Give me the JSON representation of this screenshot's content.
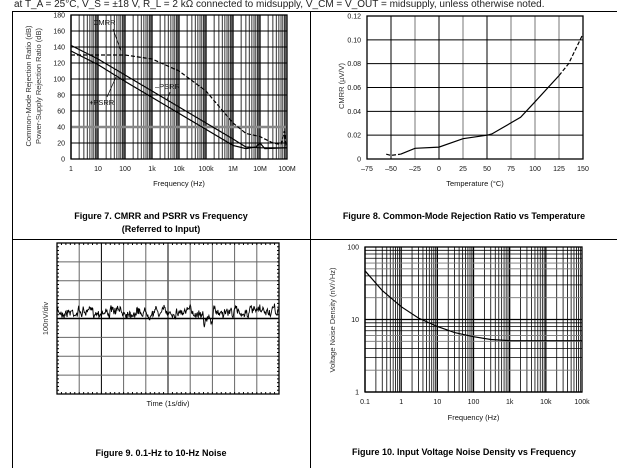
{
  "header_note": "at T_A = 25°C, V_S = ±18 V, R_L = 2 kΩ connected to midsupply, V_CM = V_OUT = midsupply, unless otherwise noted.",
  "captions": {
    "fig7_line1": "Figure 7. CMRR and PSRR vs Frequency",
    "fig7_line2": "(Referred to Input)",
    "fig8": "Figure 8. Common-Mode Rejection Ratio vs Temperature",
    "fig9": "Figure 9. 0.1-Hz to 10-Hz Noise",
    "fig10": "Figure 10. Input Voltage Noise Density vs Frequency"
  },
  "chart_data": [
    {
      "id": "fig7",
      "type": "line",
      "xscale": "log",
      "xlim": [
        1,
        100000000
      ],
      "ylim": [
        0,
        180
      ],
      "xticks": [
        "1",
        "10",
        "100",
        "1k",
        "10k",
        "100k",
        "1M",
        "10M",
        "100M"
      ],
      "yticks": [
        "0",
        "20",
        "40",
        "60",
        "80",
        "100",
        "120",
        "140",
        "160",
        "180"
      ],
      "xlabel": "Frequency (Hz)",
      "ylabel": "Common-Mode Rejection Ratio (dB)",
      "ylabel2": "Power-Supply Rejection Ratio (dB)",
      "series": [
        {
          "name": "CMRR",
          "dashed": true,
          "x": [
            1,
            10,
            100,
            1000,
            10000,
            100000,
            1000000,
            3000000,
            10000000,
            30000000,
            60000000,
            80000000,
            90000000,
            100000000
          ],
          "y": [
            130,
            130,
            130,
            125,
            110,
            85,
            45,
            32,
            28,
            20,
            18,
            35,
            18,
            20
          ]
        },
        {
          "name": "–PSRR",
          "dashed": false,
          "x": [
            1,
            10,
            100,
            1000,
            10000,
            100000,
            1000000,
            3000000,
            10000000,
            100000000
          ],
          "y": [
            142,
            125,
            105,
            85,
            65,
            45,
            25,
            15,
            14,
            14
          ]
        },
        {
          "name": "+PSRR",
          "dashed": false,
          "x": [
            1,
            10,
            100,
            1000,
            10000,
            100000,
            1000000,
            3000000,
            7000000,
            10000000,
            15000000,
            100000000
          ],
          "y": [
            135,
            118,
            97,
            77,
            57,
            37,
            17,
            13,
            15,
            20,
            13,
            14
          ]
        }
      ]
    },
    {
      "id": "fig8",
      "type": "line",
      "xscale": "linear",
      "xlim": [
        -75,
        150
      ],
      "ylim": [
        0,
        0.12
      ],
      "xticks": [
        "–75",
        "–50",
        "–25",
        "0",
        "25",
        "50",
        "75",
        "100",
        "125",
        "150"
      ],
      "yticks": [
        "0",
        "0.02",
        "0.04",
        "0.06",
        "0.08",
        "0.10",
        "0.12"
      ],
      "xlabel": "Temperature (°C)",
      "ylabel": "CMRR (µV/V)",
      "series": [
        {
          "name": "CMRR",
          "x": [
            -55,
            -50,
            -40,
            -25,
            0,
            25,
            50,
            55,
            85,
            100,
            125,
            135,
            150
          ],
          "y": [
            0.004,
            0.003,
            0.004,
            0.009,
            0.01,
            0.017,
            0.02,
            0.021,
            0.035,
            0.048,
            0.07,
            0.08,
            0.105
          ]
        }
      ]
    },
    {
      "id": "fig9",
      "type": "line",
      "xlabel": "Time (1s/div)",
      "ylabel": "100nV/div",
      "x_divisions": 10,
      "y_divisions": 8,
      "duration_s": 10
    },
    {
      "id": "fig10",
      "type": "line",
      "xscale": "log",
      "yscale": "log",
      "xlim": [
        0.1,
        100000
      ],
      "ylim": [
        1,
        100
      ],
      "xticks": [
        "0.1",
        "1",
        "10",
        "100",
        "1k",
        "10k",
        "100k"
      ],
      "yticks": [
        "1",
        "10",
        "100"
      ],
      "xlabel": "Frequency (Hz)",
      "ylabel": "Voltage Noise Density (nV/√Hz)",
      "series": [
        {
          "name": "noise",
          "x": [
            0.1,
            0.3,
            1,
            3,
            10,
            30,
            100,
            300,
            1000,
            100000
          ],
          "y": [
            47,
            25,
            15,
            10.5,
            8,
            6.6,
            5.8,
            5.3,
            5.1,
            5.1
          ]
        }
      ]
    }
  ]
}
